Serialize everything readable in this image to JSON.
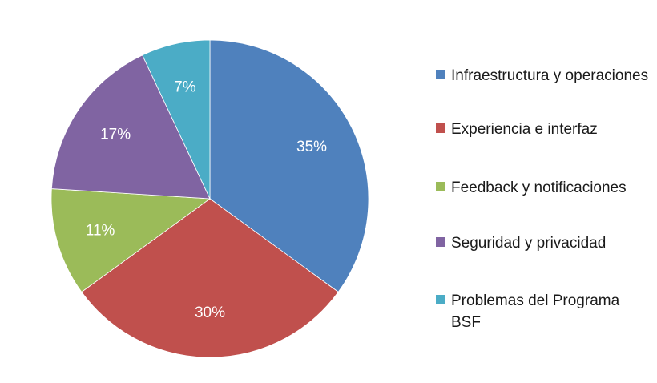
{
  "chart_data": {
    "type": "pie",
    "title": "",
    "categories": [
      "Infraestructura y operaciones",
      "Experiencia e interfaz",
      "Feedback y notificaciones",
      "Seguridad y privacidad",
      "Problemas del Programa BSF"
    ],
    "values": [
      35,
      30,
      11,
      17,
      7
    ],
    "labels": [
      "35%",
      "30%",
      "11%",
      "17%",
      "7%"
    ],
    "colors": [
      "#4F81BD",
      "#C0504D",
      "#9BBB59",
      "#8064A2",
      "#4BACC6"
    ],
    "legend_position": "right",
    "start_angle": "12 o'clock",
    "direction": "clockwise"
  },
  "legend": {
    "items": [
      {
        "label": "Infraestructura y operaciones",
        "color": "#4F81BD"
      },
      {
        "label": "Experiencia e interfaz",
        "color": "#C0504D"
      },
      {
        "label": "Feedback y notificaciones",
        "color": "#9BBB59"
      },
      {
        "label": "Seguridad y privacidad",
        "color": "#8064A2"
      },
      {
        "label": "Problemas del Programa BSF",
        "color": "#4BACC6"
      }
    ]
  }
}
